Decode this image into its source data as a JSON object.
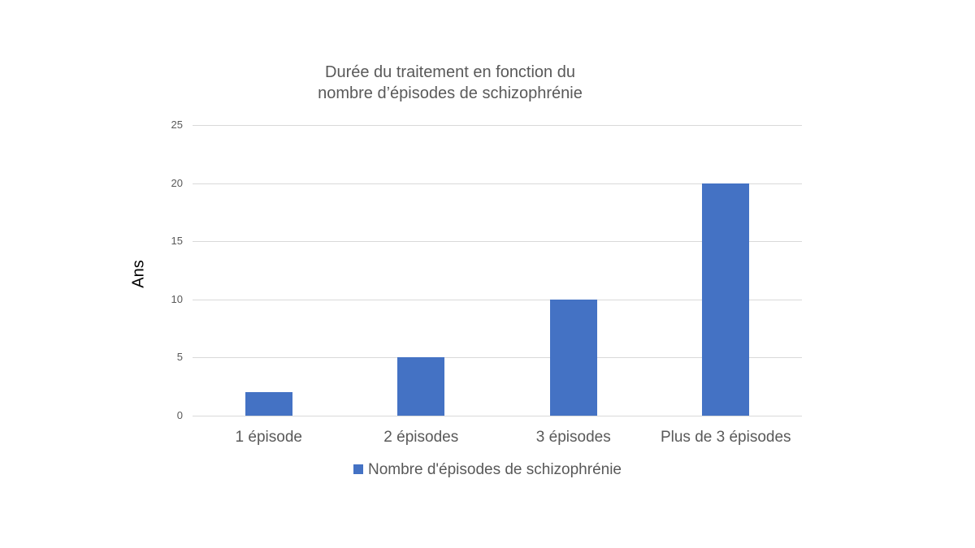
{
  "chart_data": {
    "type": "bar",
    "title": "Durée du traitement en fonction du nombre d’épisodes de schizophrénie",
    "title_lines": [
      "Durée du traitement en fonction du",
      "nombre d’épisodes de schizophrénie"
    ],
    "xlabel": "",
    "ylabel": "Ans",
    "categories": [
      "1 épisode",
      "2 épisodes",
      "3 épisodes",
      "Plus de 3 épisodes"
    ],
    "series": [
      {
        "name": "Nombre d'épisodes de schizophrénie",
        "values": [
          2,
          5,
          10,
          20
        ],
        "color": "#4472c4"
      }
    ],
    "ylim": [
      0,
      25
    ],
    "yticks": [
      "0",
      "5",
      "10",
      "15",
      "20",
      "25"
    ],
    "grid": true,
    "legend_position": "bottom"
  }
}
